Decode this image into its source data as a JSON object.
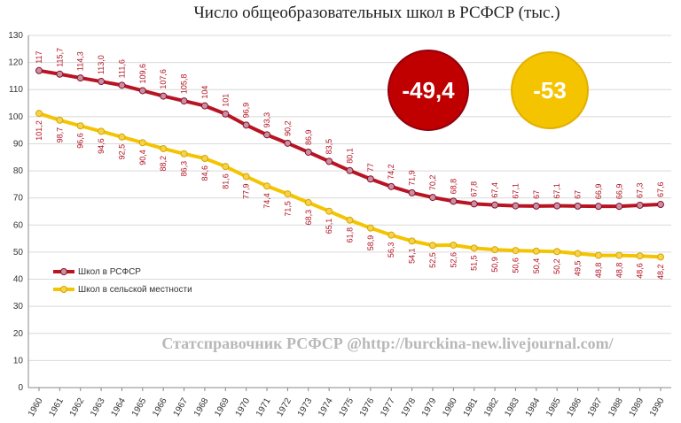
{
  "chart_data": {
    "type": "line",
    "title": "Число общеобразовательных школ в РСФСР (тыс.)",
    "categories": [
      "1960",
      "1961",
      "1962",
      "1963",
      "1964",
      "1965",
      "1966",
      "1967",
      "1968",
      "1969",
      "1970",
      "1971",
      "1972",
      "1973",
      "1974",
      "1975",
      "1976",
      "1977",
      "1978",
      "1979",
      "1980",
      "1981",
      "1982",
      "1983",
      "1984",
      "1985",
      "1986",
      "1987",
      "1988",
      "1989",
      "1990"
    ],
    "series": [
      {
        "name": "Школ в РСФСР",
        "color": "#b81424",
        "values": [
          117,
          115.7,
          114.3,
          113.0,
          111.6,
          109.6,
          107.6,
          105.8,
          104,
          101,
          96.9,
          93.3,
          90.2,
          86.9,
          83.5,
          80.1,
          77,
          74.2,
          71.9,
          70.2,
          68.8,
          67.8,
          67.4,
          67.1,
          67,
          67.1,
          67,
          66.9,
          66.9,
          67.3,
          67.6
        ],
        "value_labels": [
          "117",
          "115,7",
          "114,3",
          "113,0",
          "111,6",
          "109,6",
          "107,6",
          "105,8",
          "104",
          "101",
          "96,9",
          "93,3",
          "90,2",
          "86,9",
          "83,5",
          "80,1",
          "77",
          "74,2",
          "71,9",
          "70,2",
          "68,8",
          "67,8",
          "67,4",
          "67,1",
          "67",
          "67,1",
          "67",
          "66,9",
          "66,9",
          "67,3",
          "67,6"
        ]
      },
      {
        "name": "Школ в сельской местности",
        "color": "#f5c400",
        "values": [
          101.2,
          98.7,
          96.6,
          94.6,
          92.5,
          90.4,
          88.2,
          86.3,
          84.6,
          81.6,
          77.9,
          74.4,
          71.5,
          68.3,
          65.1,
          61.8,
          58.9,
          56.3,
          54.1,
          52.5,
          52.6,
          51.5,
          50.9,
          50.6,
          50.4,
          50.2,
          49.5,
          48.8,
          48.8,
          48.6,
          48.2
        ],
        "value_labels": [
          "101,2",
          "98,7",
          "96,6",
          "94,6",
          "92,5",
          "90,4",
          "88,2",
          "86,3",
          "84,6",
          "81,6",
          "77,9",
          "74,4",
          "71,5",
          "68,3",
          "65,1",
          "61,8",
          "58,9",
          "56,3",
          "54,1",
          "52,5",
          "52,6",
          "51,5",
          "50,9",
          "50,6",
          "50,4",
          "50,2",
          "49,5",
          "48,8",
          "48,8",
          "48,6",
          "48,2"
        ]
      }
    ],
    "ylim": [
      0,
      130
    ],
    "yticks": [
      0,
      10,
      20,
      30,
      40,
      50,
      60,
      70,
      80,
      90,
      100,
      110,
      120,
      130
    ],
    "grid": true,
    "annotations": [
      {
        "text": "-49,4",
        "color": "#c00000"
      },
      {
        "text": "-53",
        "color": "#f5c400"
      }
    ],
    "source": "Статсправочник РСФСР @http://burckina-new.livejournal.com/"
  }
}
